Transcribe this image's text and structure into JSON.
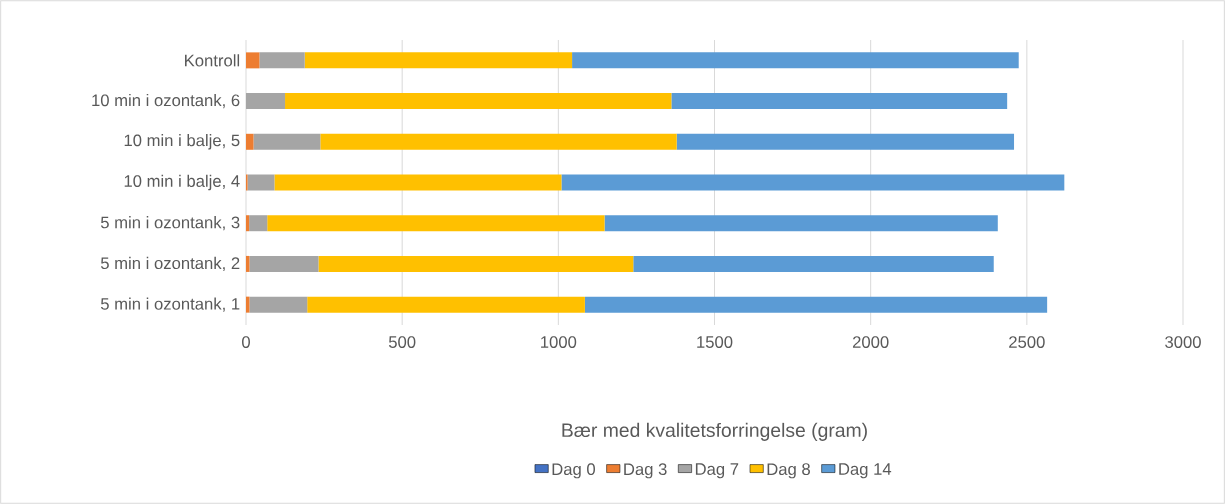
{
  "chart_data": {
    "type": "bar",
    "orientation": "horizontal",
    "stacked": true,
    "xlabel": "Bær med kvalitetsforringelse (gram)",
    "categories": [
      "Kontroll",
      "10 min i ozontank, 6",
      "10 min i balje, 5",
      "10 min i balje, 4",
      "5 min i ozontank, 3",
      "5 min i ozontank, 2",
      "5 min i ozontank, 1"
    ],
    "series": [
      {
        "name": "Dag 0",
        "color": "#4472c4",
        "values": [
          0,
          0,
          0,
          0,
          0,
          0,
          0
        ]
      },
      {
        "name": "Dag 3",
        "color": "#ed7d31",
        "values": [
          43,
          0,
          24,
          5,
          10,
          11,
          11
        ]
      },
      {
        "name": "Dag 7",
        "color": "#a5a5a5",
        "values": [
          145,
          125,
          214,
          86,
          58,
          221,
          185
        ]
      },
      {
        "name": "Dag 8",
        "color": "#ffc000",
        "values": [
          856,
          1237,
          1141,
          919,
          1080,
          1008,
          889
        ]
      },
      {
        "name": "Dag 14",
        "color": "#5b9bd5",
        "values": [
          1430,
          1075,
          1080,
          1610,
          1259,
          1154,
          1480
        ]
      }
    ],
    "xlim": [
      0,
      3000
    ],
    "xticks": [
      0,
      500,
      1000,
      1500,
      2000,
      2500,
      3000
    ],
    "grid": "x",
    "legend": "bottom"
  }
}
